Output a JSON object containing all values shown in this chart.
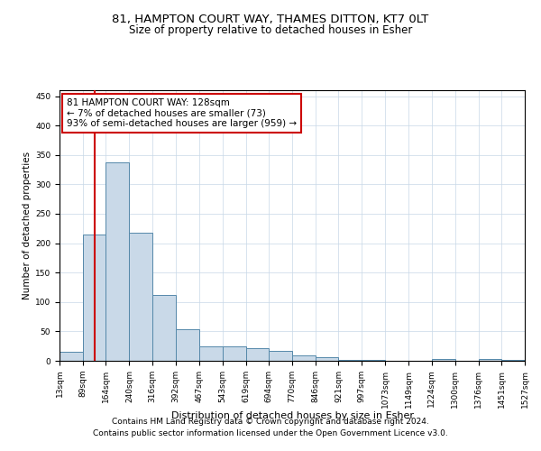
{
  "title1": "81, HAMPTON COURT WAY, THAMES DITTON, KT7 0LT",
  "title2": "Size of property relative to detached houses in Esher",
  "xlabel": "Distribution of detached houses by size in Esher",
  "ylabel": "Number of detached properties",
  "footer1": "Contains HM Land Registry data © Crown copyright and database right 2024.",
  "footer2": "Contains public sector information licensed under the Open Government Licence v3.0.",
  "annotation_line1": "81 HAMPTON COURT WAY: 128sqm",
  "annotation_line2": "← 7% of detached houses are smaller (73)",
  "annotation_line3": "93% of semi-detached houses are larger (959) →",
  "property_size": 128,
  "bar_left_edges": [
    13,
    89,
    164,
    240,
    316,
    392,
    467,
    543,
    619,
    694,
    770,
    846,
    921,
    997,
    1073,
    1149,
    1224,
    1300,
    1376,
    1451
  ],
  "bar_widths": [
    76,
    75,
    76,
    76,
    76,
    75,
    76,
    76,
    75,
    76,
    76,
    75,
    76,
    76,
    76,
    75,
    76,
    76,
    75,
    76
  ],
  "bar_heights": [
    15,
    215,
    338,
    218,
    112,
    53,
    25,
    24,
    21,
    17,
    9,
    6,
    2,
    1,
    0,
    0,
    3,
    0,
    3,
    2
  ],
  "tick_labels": [
    "13sqm",
    "89sqm",
    "164sqm",
    "240sqm",
    "316sqm",
    "392sqm",
    "467sqm",
    "543sqm",
    "619sqm",
    "694sqm",
    "770sqm",
    "846sqm",
    "921sqm",
    "997sqm",
    "1073sqm",
    "1149sqm",
    "1224sqm",
    "1300sqm",
    "1376sqm",
    "1451sqm",
    "1527sqm"
  ],
  "bar_color": "#c9d9e8",
  "bar_edge_color": "#5588aa",
  "bar_edge_width": 0.7,
  "grid_color": "#c8d8e8",
  "background_color": "#ffffff",
  "vline_color": "#cc0000",
  "vline_x": 128,
  "ylim": [
    0,
    460
  ],
  "yticks": [
    0,
    50,
    100,
    150,
    200,
    250,
    300,
    350,
    400,
    450
  ],
  "annotation_box_color": "#ffffff",
  "annotation_box_edge_color": "#cc0000",
  "title1_fontsize": 9.5,
  "title2_fontsize": 8.5,
  "axis_label_fontsize": 8,
  "tick_fontsize": 6.5,
  "annotation_fontsize": 7.5,
  "footer_fontsize": 6.5,
  "ylabel_fontsize": 7.5
}
